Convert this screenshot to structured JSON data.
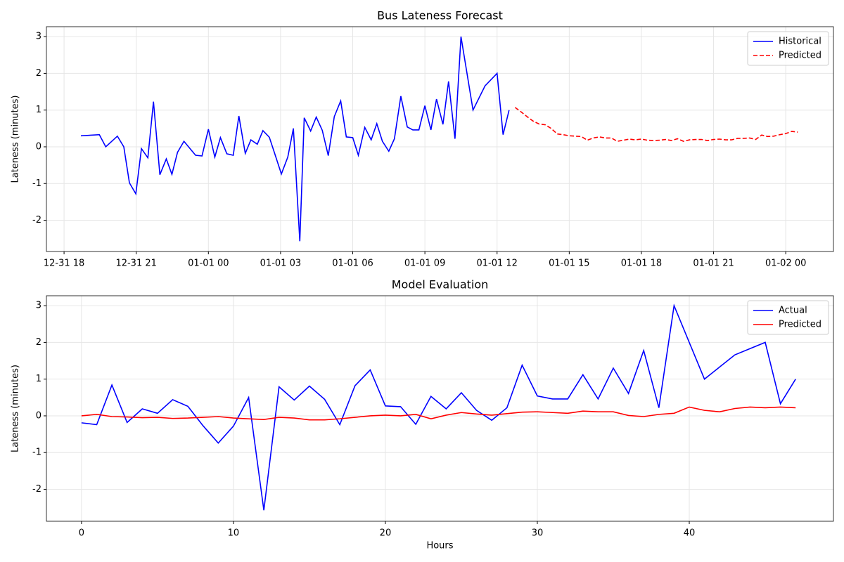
{
  "chart_data": [
    {
      "type": "line",
      "title": "Bus Lateness Forecast",
      "ylabel": "Lateness (minutes)",
      "xlim": [
        "12-31 17:16",
        "01-02 01:59"
      ],
      "xticks": [
        {
          "value": "12-31 18:00",
          "label": "12-31 18"
        },
        {
          "value": "12-31 21:00",
          "label": "12-31 21"
        },
        {
          "value": "01-01 00:00",
          "label": "01-01 00"
        },
        {
          "value": "01-01 03:00",
          "label": "01-01 03"
        },
        {
          "value": "01-01 06:00",
          "label": "01-01 06"
        },
        {
          "value": "01-01 09:00",
          "label": "01-01 09"
        },
        {
          "value": "01-01 12:00",
          "label": "01-01 12"
        },
        {
          "value": "01-01 15:00",
          "label": "01-01 15"
        },
        {
          "value": "01-01 18:00",
          "label": "01-01 18"
        },
        {
          "value": "01-01 21:00",
          "label": "01-01 21"
        },
        {
          "value": "01-02 00:00",
          "label": "01-02 00"
        }
      ],
      "ylim": [
        -2.85,
        3.27
      ],
      "yticks": [
        -2,
        -1,
        0,
        1,
        2,
        3
      ],
      "grid": true,
      "legend": "upper right",
      "series": [
        {
          "name": "Historical",
          "color": "#0000ff",
          "dashed": false,
          "x": [
            "12-31 18:42",
            "12-31 19:28",
            "12-31 19:44",
            "12-31 20:13",
            "12-31 20:29",
            "12-31 20:43",
            "12-31 20:59",
            "12-31 21:13",
            "12-31 21:29",
            "12-31 21:43",
            "12-31 21:59",
            "12-31 22:15",
            "12-31 22:29",
            "12-31 22:43",
            "12-31 22:59",
            "12-31 23:28",
            "12-31 23:44",
            "01-01 00:00",
            "01-01 00:16",
            "01-01 00:30",
            "01-01 00:46",
            "01-01 01:02",
            "01-01 01:16",
            "01-01 01:32",
            "01-01 01:46",
            "01-01 02:02",
            "01-01 02:16",
            "01-01 02:32",
            "01-01 02:48",
            "01-01 03:02",
            "01-01 03:18",
            "01-01 03:32",
            "01-01 03:48",
            "01-01 03:59",
            "01-01 04:15",
            "01-01 04:29",
            "01-01 04:44",
            "01-01 04:59",
            "01-01 05:14",
            "01-01 05:30",
            "01-01 05:44",
            "01-01 06:00",
            "01-01 06:14",
            "01-01 06:30",
            "01-01 06:46",
            "01-01 07:00",
            "01-01 07:14",
            "01-01 07:30",
            "01-01 07:44",
            "01-01 08:00",
            "01-01 08:16",
            "01-01 08:30",
            "01-01 08:45",
            "01-01 09:00",
            "01-01 09:15",
            "01-01 09:29",
            "01-01 09:45",
            "01-01 09:59",
            "01-01 10:15",
            "01-01 10:30",
            "01-01 11:00",
            "01-01 11:30",
            "01-01 12:00",
            "01-01 12:15",
            "01-01 12:30"
          ],
          "values": [
            0.3,
            0.33,
            0.0,
            0.29,
            0.0,
            -0.98,
            -1.28,
            -0.05,
            -0.3,
            1.23,
            -0.76,
            -0.33,
            -0.75,
            -0.15,
            0.15,
            -0.23,
            -0.25,
            0.48,
            -0.28,
            0.25,
            -0.19,
            -0.23,
            0.84,
            -0.18,
            0.19,
            0.07,
            0.44,
            0.26,
            -0.27,
            -0.74,
            -0.28,
            0.5,
            -2.57,
            0.79,
            0.43,
            0.81,
            0.45,
            -0.24,
            0.82,
            1.25,
            0.27,
            0.25,
            -0.23,
            0.53,
            0.19,
            0.63,
            0.15,
            -0.12,
            0.22,
            1.38,
            0.54,
            0.46,
            0.46,
            1.12,
            0.46,
            1.3,
            0.61,
            1.78,
            0.22,
            3.0,
            1.0,
            1.66,
            2.0,
            0.33,
            1.0
          ]
        },
        {
          "name": "Predicted",
          "color": "#ff0000",
          "dashed": true,
          "x": [
            "01-01 12:45",
            "01-01 13:00",
            "01-01 13:15",
            "01-01 13:30",
            "01-01 13:45",
            "01-01 14:00",
            "01-01 14:15",
            "01-01 14:30",
            "01-01 14:45",
            "01-01 15:00",
            "01-01 15:15",
            "01-01 15:30",
            "01-01 15:45",
            "01-01 16:00",
            "01-01 16:15",
            "01-01 16:30",
            "01-01 16:45",
            "01-01 17:00",
            "01-01 17:15",
            "01-01 17:30",
            "01-01 17:45",
            "01-01 18:00",
            "01-01 18:15",
            "01-01 18:30",
            "01-01 18:45",
            "01-01 19:00",
            "01-01 19:15",
            "01-01 19:30",
            "01-01 19:45",
            "01-01 20:00",
            "01-01 20:15",
            "01-01 20:30",
            "01-01 20:45",
            "01-01 21:00",
            "01-01 21:15",
            "01-01 21:30",
            "01-01 21:45",
            "01-01 22:00",
            "01-01 22:15",
            "01-01 22:30",
            "01-01 22:45",
            "01-01 23:00",
            "01-01 23:15",
            "01-01 23:30",
            "01-01 23:45",
            "01-02 00:00",
            "01-02 00:15",
            "01-02 00:30"
          ],
          "values": [
            1.07,
            0.95,
            0.82,
            0.7,
            0.62,
            0.6,
            0.5,
            0.35,
            0.33,
            0.3,
            0.29,
            0.28,
            0.18,
            0.24,
            0.27,
            0.24,
            0.24,
            0.15,
            0.18,
            0.21,
            0.19,
            0.21,
            0.18,
            0.17,
            0.18,
            0.2,
            0.17,
            0.22,
            0.15,
            0.19,
            0.2,
            0.2,
            0.17,
            0.2,
            0.21,
            0.19,
            0.19,
            0.23,
            0.23,
            0.24,
            0.2,
            0.32,
            0.28,
            0.29,
            0.33,
            0.36,
            0.42,
            0.4
          ]
        }
      ]
    },
    {
      "type": "line",
      "title": "Model Evaluation",
      "xlabel": "Hours",
      "ylabel": "Lateness (minutes)",
      "xlim": [
        -2.31,
        49.49
      ],
      "xticks": [
        0,
        10,
        20,
        30,
        40
      ],
      "ylim": [
        -2.87,
        3.27
      ],
      "yticks": [
        -2,
        -1,
        0,
        1,
        2,
        3
      ],
      "grid": true,
      "legend": "upper right",
      "series": [
        {
          "name": "Actual",
          "color": "#0000ff",
          "dashed": false,
          "x": [
            0,
            1,
            2,
            3,
            4,
            5,
            6,
            7,
            8,
            9,
            10,
            11,
            12,
            13,
            14,
            15,
            16,
            17,
            18,
            19,
            20,
            21,
            22,
            23,
            24,
            25,
            26,
            27,
            28,
            29,
            30,
            31,
            32,
            33,
            34,
            35,
            36,
            37,
            38,
            39,
            40,
            41,
            42,
            43,
            44,
            45,
            46,
            47
          ],
          "values": [
            -0.19,
            -0.24,
            0.84,
            -0.18,
            0.19,
            0.07,
            0.44,
            0.26,
            -0.27,
            -0.74,
            -0.28,
            0.5,
            -2.57,
            0.79,
            0.43,
            0.81,
            0.45,
            -0.24,
            0.82,
            1.25,
            0.27,
            0.25,
            -0.23,
            0.53,
            0.19,
            0.63,
            0.15,
            -0.12,
            0.22,
            1.38,
            0.54,
            0.46,
            0.46,
            1.12,
            0.46,
            1.3,
            0.61,
            1.78,
            0.22,
            3.0,
            2.0,
            1.0,
            1.33,
            1.66,
            1.83,
            2.0,
            0.33,
            1.0
          ]
        },
        {
          "name": "Predicted",
          "color": "#ff0000",
          "dashed": false,
          "x": [
            0,
            1,
            2,
            3,
            4,
            5,
            6,
            7,
            8,
            9,
            10,
            11,
            12,
            13,
            14,
            15,
            16,
            17,
            18,
            19,
            20,
            21,
            22,
            23,
            24,
            25,
            26,
            27,
            28,
            29,
            30,
            31,
            32,
            33,
            34,
            35,
            36,
            37,
            38,
            39,
            40,
            41,
            42,
            43,
            44,
            45,
            46,
            47
          ],
          "values": [
            0.0,
            0.04,
            -0.02,
            -0.03,
            -0.05,
            -0.04,
            -0.07,
            -0.06,
            -0.04,
            -0.02,
            -0.06,
            -0.08,
            -0.1,
            -0.04,
            -0.06,
            -0.11,
            -0.11,
            -0.08,
            -0.04,
            0.0,
            0.02,
            0.0,
            0.04,
            -0.08,
            0.02,
            0.09,
            0.05,
            0.02,
            0.06,
            0.1,
            0.11,
            0.09,
            0.07,
            0.13,
            0.11,
            0.11,
            0.01,
            -0.02,
            0.04,
            0.07,
            0.24,
            0.15,
            0.11,
            0.2,
            0.24,
            0.22,
            0.24,
            0.22
          ]
        }
      ]
    }
  ]
}
